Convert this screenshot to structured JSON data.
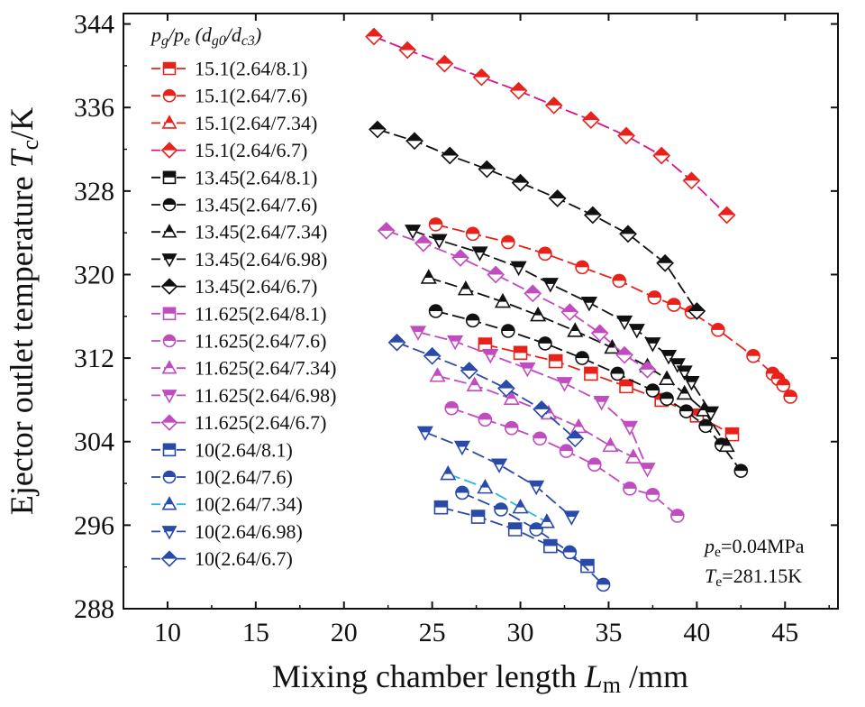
{
  "chart_data": {
    "type": "line",
    "xlabel": {
      "main": "Mixing chamber length ",
      "symbol": "L",
      "sub": "m",
      "unit": " /mm"
    },
    "ylabel": {
      "main": "Ejector outlet temperature ",
      "symbol": "T",
      "sub": "c",
      "unit": "/K"
    },
    "xlim": [
      7.5,
      48
    ],
    "ylim": [
      288,
      345
    ],
    "xticks": [
      10,
      15,
      20,
      25,
      30,
      35,
      40,
      45
    ],
    "yticks": [
      288,
      296,
      304,
      312,
      320,
      328,
      336,
      344
    ],
    "grid": false,
    "legend_position": "top-left",
    "legend_title": {
      "p1": "p",
      "s1": "g",
      "slash1": "/",
      "p2": "p",
      "s2": "e",
      "open": " (",
      "d1": "d",
      "s3": "g0",
      "slash2": "/",
      "d2": "d",
      "s4": "c3",
      "close": ")"
    },
    "annotations": {
      "pe": {
        "symbol": "p",
        "sub": "e",
        "value": "=0.04MPa"
      },
      "te": {
        "symbol": "T",
        "sub": "e",
        "value": "=281.15K"
      }
    },
    "colors": {
      "red": "#e8221a",
      "black": "#111111",
      "magenta": "#c04cc0",
      "blue": "#2a4aaa",
      "cyan": "#2ab8e0",
      "pink": "#e0108a"
    },
    "series": [
      {
        "name": "15.1(2.64/8.1)",
        "color": "#e8221a",
        "line_color": "#e8221a",
        "marker": "square",
        "x": [
          28,
          30,
          32,
          34,
          36,
          38,
          40,
          42
        ],
        "y": [
          313.3,
          312.5,
          311.7,
          310.5,
          309.3,
          308,
          306.5,
          304.7
        ]
      },
      {
        "name": "15.1(2.64/7.6)",
        "color": "#e8221a",
        "line_color": "#e8221a",
        "marker": "circle",
        "x": [
          25.2,
          27.3,
          29.3,
          31.4,
          33.5,
          35.6,
          37.6,
          38.7,
          39.7,
          41.2,
          43.2,
          44.3,
          44.6,
          44.9,
          45.3
        ],
        "y": [
          324.8,
          323.9,
          323.1,
          322,
          320.7,
          319.4,
          317.8,
          317.1,
          316.4,
          314.7,
          312.2,
          310.5,
          310,
          309.4,
          308.3
        ]
      },
      {
        "name": "15.1(2.64/7.34)",
        "color": "#e8221a",
        "line_color": "#e8221a",
        "marker": "triangle",
        "x": [],
        "y": []
      },
      {
        "name": "15.1(2.64/6.7)",
        "color": "#e8221a",
        "line_color": "#e0108a",
        "marker": "diamond",
        "x": [
          21.7,
          23.6,
          25.7,
          27.8,
          29.9,
          31.9,
          34,
          36,
          38,
          39.7,
          41.7
        ],
        "y": [
          342.8,
          341.5,
          340.2,
          338.9,
          337.6,
          336.2,
          334.8,
          333.3,
          331.4,
          329,
          325.7
        ]
      },
      {
        "name": "13.45(2.64/8.1)",
        "color": "#111111",
        "line_color": "#111111",
        "marker": "square",
        "x": [],
        "y": []
      },
      {
        "name": "13.45(2.64/7.6)",
        "color": "#111111",
        "line_color": "#111111",
        "marker": "circle",
        "x": [
          25.2,
          27.3,
          29.3,
          31.4,
          33.5,
          35.5,
          37.5,
          38.3,
          39.4,
          40.5,
          41.4,
          42.5
        ],
        "y": [
          316.5,
          315.6,
          314.6,
          313.4,
          312,
          310.5,
          308.9,
          308.1,
          306.9,
          305.5,
          303.7,
          301.2
        ]
      },
      {
        "name": "13.45(2.64/7.34)",
        "color": "#111111",
        "line_color": "#111111",
        "marker": "triangle",
        "x": [
          24.8,
          26.9,
          29,
          31,
          33.1,
          35.2,
          37.2,
          38.3,
          39.3,
          40.4,
          41.7
        ],
        "y": [
          319.7,
          318.6,
          317.4,
          316.1,
          314.6,
          313,
          311.2,
          310,
          308.6,
          307,
          303.6
        ]
      },
      {
        "name": "13.45(2.64/6.98)",
        "color": "#111111",
        "line_color": "#111111",
        "marker": "triangle-down",
        "x": [
          23.9,
          25.4,
          27.7,
          29.9,
          31.7,
          33.9,
          35.9,
          36.6,
          37.5,
          38.4,
          38.9,
          39.3,
          39.7,
          40.8
        ],
        "y": [
          324.2,
          323.3,
          322.1,
          320.7,
          319.1,
          317.3,
          315.5,
          314.7,
          313.4,
          312.2,
          311.4,
          310.7,
          309.7,
          306.8
        ]
      },
      {
        "name": "13.45(2.64/6.7)",
        "color": "#111111",
        "line_color": "#111111",
        "marker": "diamond",
        "x": [
          21.9,
          24,
          26,
          28.1,
          30,
          32.1,
          34.1,
          36.1,
          38.2,
          40
        ],
        "y": [
          333.9,
          332.8,
          331.4,
          330.1,
          328.8,
          327.3,
          325.7,
          323.9,
          321.1,
          316.5
        ]
      },
      {
        "name": "11.625(2.64/8.1)",
        "color": "#c04cc0",
        "line_color": "#c04cc0",
        "marker": "square",
        "x": [],
        "y": []
      },
      {
        "name": "11.625(2.64/7.6)",
        "color": "#c04cc0",
        "line_color": "#c04cc0",
        "marker": "circle",
        "x": [
          26.1,
          28,
          29.5,
          31.1,
          32.6,
          34.2,
          36.2,
          37.5,
          38.9
        ],
        "y": [
          307.2,
          306.1,
          305.3,
          304.3,
          303.1,
          301.8,
          299.5,
          298.9,
          296.9
        ]
      },
      {
        "name": "11.625(2.64/7.34)",
        "color": "#c04cc0",
        "line_color": "#c04cc0",
        "marker": "triangle",
        "x": [
          25.3,
          27.4,
          29.5,
          31.6,
          33.3,
          35.1,
          36.4
        ],
        "y": [
          310.3,
          309.4,
          308.1,
          306.7,
          305.4,
          303.6,
          302.5
        ]
      },
      {
        "name": "11.625(2.64/6.98)",
        "color": "#c04cc0",
        "line_color": "#c04cc0",
        "marker": "triangle-down",
        "x": [
          24.2,
          26.3,
          28.3,
          30.4,
          32.5,
          34.6,
          36.2,
          37.2
        ],
        "y": [
          314.5,
          313.6,
          312.3,
          311,
          309.6,
          307.8,
          305.4,
          301.4
        ]
      },
      {
        "name": "11.625(2.64/6.7)",
        "color": "#c04cc0",
        "line_color": "#c04cc0",
        "marker": "diamond",
        "x": [
          22.4,
          24.5,
          26.6,
          28.6,
          30.7,
          32.8,
          34.5,
          35.9,
          37.2
        ],
        "y": [
          324.2,
          323,
          321.6,
          320,
          318.2,
          316.4,
          314.4,
          312.3,
          310.9
        ]
      },
      {
        "name": "10(2.64/8.1)",
        "color": "#2a4aaa",
        "line_color": "#2a4aaa",
        "marker": "square",
        "x": [
          25.5,
          27.6,
          29.7,
          31.7,
          33.8
        ],
        "y": [
          297.7,
          296.8,
          295.6,
          294,
          292.1
        ]
      },
      {
        "name": "10(2.64/7.6)",
        "color": "#2a4aaa",
        "line_color": "#2a4aaa",
        "marker": "circle",
        "x": [
          26.7,
          28.9,
          30.9,
          32.8,
          34.7
        ],
        "y": [
          299.1,
          297.5,
          295.6,
          293.4,
          290.3
        ]
      },
      {
        "name": "10(2.64/7.34)",
        "color": "#2a4aaa",
        "line_color": "#2ab8e0",
        "marker": "triangle",
        "x": [
          25.9,
          28,
          30,
          31.5
        ],
        "y": [
          300.9,
          299.6,
          297.7,
          296.3
        ]
      },
      {
        "name": "10(2.64/6.98)",
        "color": "#2a4aaa",
        "line_color": "#2a4aaa",
        "marker": "triangle-down",
        "x": [
          24.6,
          26.7,
          28.8,
          30.9,
          32.9
        ],
        "y": [
          304.9,
          303.5,
          301.8,
          299.7,
          296.8
        ]
      },
      {
        "name": "10(2.64/6.7)",
        "color": "#2a4aaa",
        "line_color": "#2a4aaa",
        "marker": "diamond",
        "x": [
          23,
          25,
          27.1,
          29.2,
          31.2,
          33.1
        ],
        "y": [
          313.5,
          312.2,
          310.8,
          309.1,
          307.1,
          304.3
        ]
      }
    ]
  }
}
